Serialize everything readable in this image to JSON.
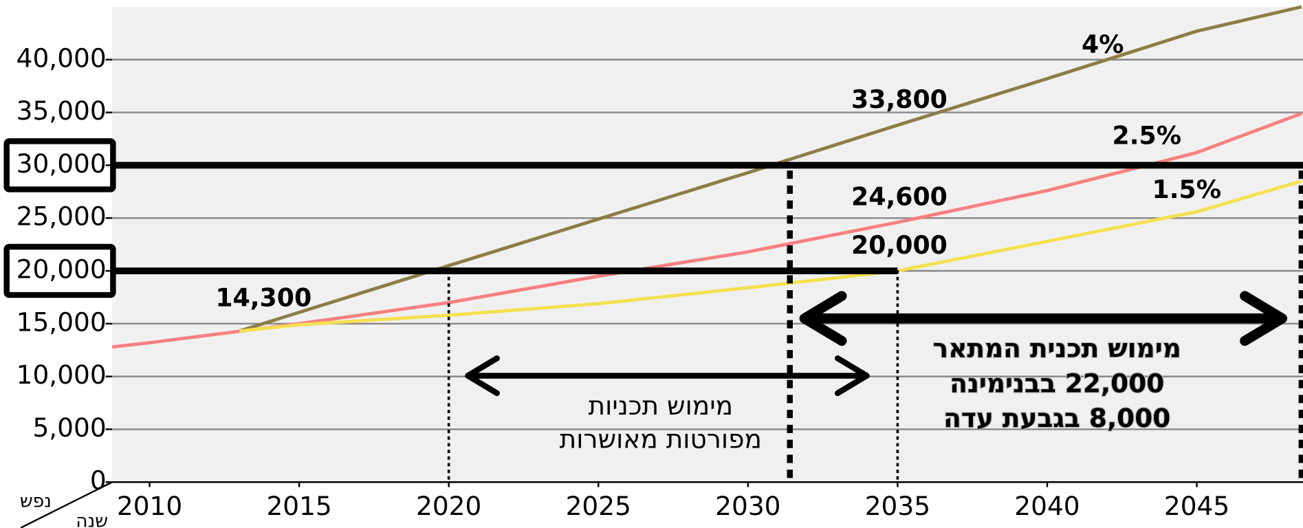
{
  "chart_data": {
    "type": "line",
    "xlim": [
      2008.75,
      2048.55
    ],
    "ylim": [
      0,
      45000
    ],
    "xticks": [
      2010,
      2015,
      2020,
      2025,
      2030,
      2035,
      2040,
      2045
    ],
    "yticks": [
      0,
      {
        "value": 5000,
        "label": "5,000"
      },
      {
        "value": 10000,
        "label": "10,000"
      },
      {
        "value": 15000,
        "label": "15,000"
      },
      {
        "value": 20000,
        "label": "20,000"
      },
      {
        "value": 25000,
        "label": "25,000"
      },
      {
        "value": 30000,
        "label": "30,000"
      },
      {
        "value": 35000,
        "label": "35,000"
      },
      {
        "value": 40000,
        "label": "40,000"
      }
    ],
    "grid": true,
    "series": [
      {
        "name": "4%",
        "color": "#8b7d45",
        "x": [
          2013,
          2020,
          2025,
          2030,
          2035,
          2040,
          2045,
          2048.5
        ],
        "values": [
          14300,
          20500,
          24900,
          29300,
          33800,
          38200,
          42700,
          45000
        ],
        "value_labels": [
          null,
          null,
          null,
          null,
          "33,800",
          null,
          null,
          null
        ]
      },
      {
        "name": "2.5%",
        "color": "#f88080",
        "x": [
          2008.75,
          2010,
          2015,
          2020,
          2025,
          2030,
          2035,
          2040,
          2045,
          2048.5
        ],
        "values": [
          12800,
          13200,
          15000,
          17000,
          19500,
          21800,
          24600,
          27600,
          31200,
          34900
        ],
        "value_labels": [
          null,
          null,
          null,
          null,
          null,
          null,
          "24,600",
          null,
          null,
          null
        ]
      },
      {
        "name": "1.5%",
        "color": "#f5e050",
        "x": [
          2013,
          2015,
          2020,
          2025,
          2030,
          2035,
          2040,
          2045,
          2048.5
        ],
        "values": [
          14300,
          14900,
          15800,
          16900,
          18400,
          20000,
          22800,
          25600,
          28500
        ],
        "value_labels": [
          "14,300",
          null,
          null,
          null,
          null,
          "20,000",
          null,
          null,
          null
        ]
      }
    ],
    "reference_lines": [
      {
        "value": 20000,
        "x_end": 2035
      },
      {
        "value": 30000
      }
    ],
    "vlines": [
      {
        "x": 2020,
        "style": "thin"
      },
      {
        "x": 2031.4,
        "style": "thick"
      },
      {
        "x": 2035,
        "style": "thin"
      },
      {
        "x": 2048.5,
        "style": "thick"
      }
    ],
    "annotations": [
      {
        "lines": [
          "מימוש תכניות",
          "מפורטות מאושרות"
        ]
      },
      {
        "lines": [
          "מימוש תכנית המתאר",
          "22,000 בבנימינה",
          "8,000 בגבעת עדה"
        ]
      }
    ],
    "y_unit_label": "נפש",
    "x_unit_label": "שנה"
  }
}
